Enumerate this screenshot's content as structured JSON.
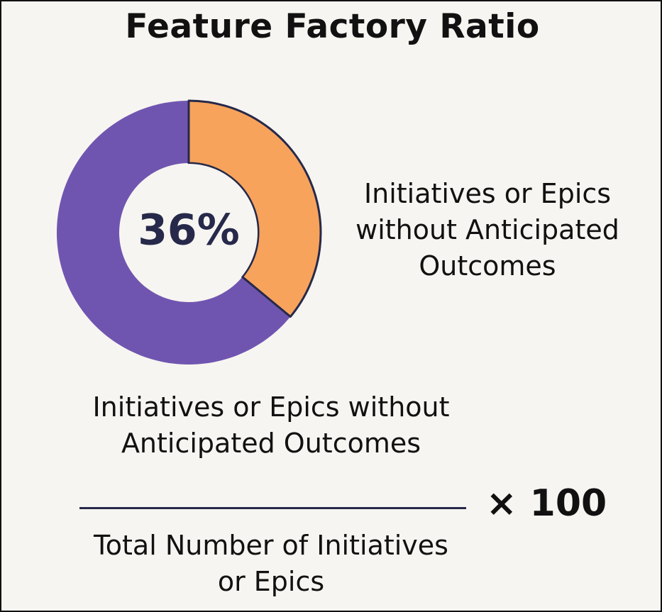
{
  "title": "Feature Factory Ratio",
  "chart_data": {
    "type": "pie",
    "title": "Feature Factory Ratio",
    "center_label": "36%",
    "slices": [
      {
        "label": "Initiatives or Epics without Anticipated Outcomes",
        "value": 36,
        "color": "#f7a35c"
      },
      {
        "label": "",
        "value": 64,
        "color": "#7055b0"
      }
    ]
  },
  "slice_label": "Initiatives or Epics without Anticipated Outcomes",
  "formula": {
    "numerator": "Initiatives or Epics without Anticipated Outcomes",
    "denominator": "Total Number of Initiatives or Epics",
    "multiplier": "× 100"
  }
}
